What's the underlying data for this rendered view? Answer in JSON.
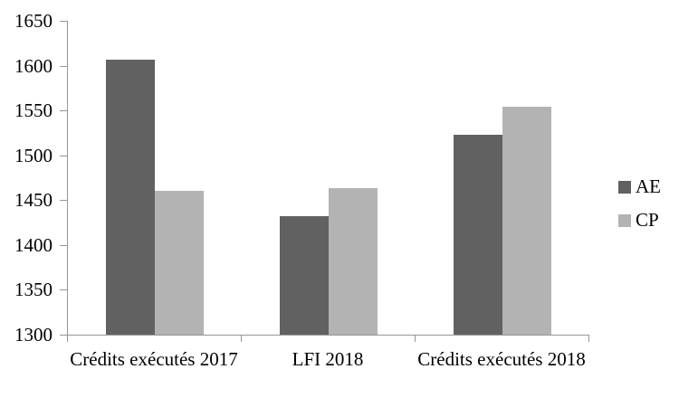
{
  "chart_data": {
    "type": "bar",
    "title": "",
    "xlabel": "",
    "ylabel": "",
    "categories": [
      "Crédits exécutés 2017",
      "LFI 2018",
      "Crédits exécutés 2018"
    ],
    "series": [
      {
        "name": "AE",
        "color": "#616161",
        "values": [
          1607,
          1432,
          1523
        ]
      },
      {
        "name": "CP",
        "color": "#b3b3b3",
        "values": [
          1460,
          1463,
          1554
        ]
      }
    ],
    "ylim": [
      1300,
      1650
    ],
    "ytick_step": 50,
    "yticks": [
      1650,
      1600,
      1550,
      1500,
      1450,
      1400,
      1350,
      1300
    ],
    "grid": false,
    "legend_position": "right",
    "axis_color": "#969696",
    "text_color": "#000000",
    "background_color": "#ffffff"
  }
}
